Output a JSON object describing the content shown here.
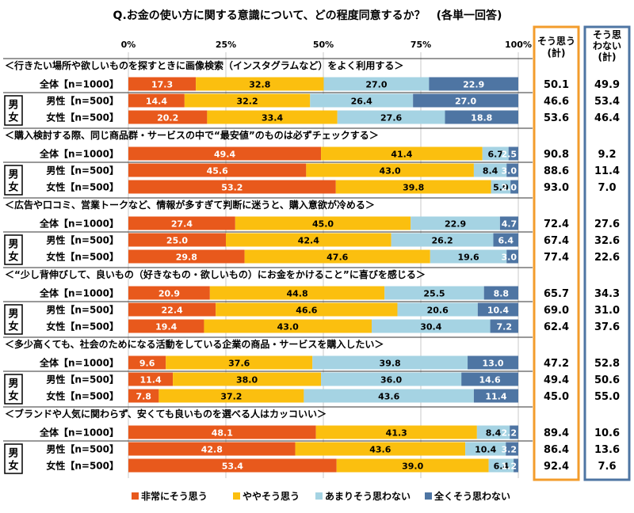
{
  "chart_data": {
    "type": "bar",
    "stacked": true,
    "orientation": "horizontal",
    "title": "Q.お金の使い方に関する意識について、どの程度同意するか？　(各単一回答)",
    "x_ticks": [
      "0%",
      "25%",
      "50%",
      "75%",
      "100%"
    ],
    "xlim": [
      0,
      100
    ],
    "grid": true,
    "legend_position": "bottom",
    "gender_label": "男\n女",
    "summary_headers": {
      "agree": "そう思う\n(計)",
      "disagree": "そう思\nわない\n(計)"
    },
    "legend": [
      {
        "name": "非常にそう思う",
        "color": "#e8591c"
      },
      {
        "name": "ややそう思う",
        "color": "#fbbf0f"
      },
      {
        "name": "あまりそう思わない",
        "color": "#a5d3e3"
      },
      {
        "name": "全くそう思わない",
        "color": "#4e75a3"
      }
    ],
    "groups": [
      {
        "question": "＜行きたい場所や欲しいものを探すときに画像検索（インスタグラムなど）をよく利用する＞",
        "rows": [
          {
            "label": "全体【n=1000】",
            "values": [
              17.3,
              32.8,
              27.0,
              22.9
            ],
            "agree": "50.1",
            "disagree": "49.9"
          },
          {
            "label": "男性【n=500】",
            "values": [
              14.4,
              32.2,
              26.4,
              27.0
            ],
            "agree": "46.6",
            "disagree": "53.4"
          },
          {
            "label": "女性【n=500】",
            "values": [
              20.2,
              33.4,
              27.6,
              18.8
            ],
            "agree": "53.6",
            "disagree": "46.4"
          }
        ]
      },
      {
        "question": "＜購入検討する際、同じ商品群・サービスの中で“最安値”のものは必ずチェックする＞",
        "rows": [
          {
            "label": "全体【n=1000】",
            "values": [
              49.4,
              41.4,
              6.7,
              2.5
            ],
            "agree": "90.8",
            "disagree": "9.2"
          },
          {
            "label": "男性【n=500】",
            "values": [
              45.6,
              43.0,
              8.4,
              3.0
            ],
            "agree": "88.6",
            "disagree": "11.4"
          },
          {
            "label": "女性【n=500】",
            "values": [
              53.2,
              39.8,
              5.0,
              2.0
            ],
            "agree": "93.0",
            "disagree": "7.0"
          }
        ]
      },
      {
        "question": "＜広告や口コミ、営業トークなど、情報が多すぎて判断に迷うと、購入意欲が冷める＞",
        "rows": [
          {
            "label": "全体【n=1000】",
            "values": [
              27.4,
              45.0,
              22.9,
              4.7
            ],
            "agree": "72.4",
            "disagree": "27.6"
          },
          {
            "label": "男性【n=500】",
            "values": [
              25.0,
              42.4,
              26.2,
              6.4
            ],
            "agree": "67.4",
            "disagree": "32.6"
          },
          {
            "label": "女性【n=500】",
            "values": [
              29.8,
              47.6,
              19.6,
              3.0
            ],
            "agree": "77.4",
            "disagree": "22.6"
          }
        ]
      },
      {
        "question": "＜“少し背伸びして、良いもの（好きなもの・欲しいもの）にお金をかけること”に喜びを感じる＞",
        "rows": [
          {
            "label": "全体【n=1000】",
            "values": [
              20.9,
              44.8,
              25.5,
              8.8
            ],
            "agree": "65.7",
            "disagree": "34.3"
          },
          {
            "label": "男性【n=500】",
            "values": [
              22.4,
              46.6,
              20.6,
              10.4
            ],
            "agree": "69.0",
            "disagree": "31.0"
          },
          {
            "label": "女性【n=500】",
            "values": [
              19.4,
              43.0,
              30.4,
              7.2
            ],
            "agree": "62.4",
            "disagree": "37.6"
          }
        ]
      },
      {
        "question": "＜多少高くても、社会のためになる活動をしている企業の商品・サービスを購入したい＞",
        "rows": [
          {
            "label": "全体【n=1000】",
            "values": [
              9.6,
              37.6,
              39.8,
              13.0
            ],
            "agree": "47.2",
            "disagree": "52.8"
          },
          {
            "label": "男性【n=500】",
            "values": [
              11.4,
              38.0,
              36.0,
              14.6
            ],
            "agree": "49.4",
            "disagree": "50.6"
          },
          {
            "label": "女性【n=500】",
            "values": [
              7.8,
              37.2,
              43.6,
              11.4
            ],
            "agree": "45.0",
            "disagree": "55.0"
          }
        ]
      },
      {
        "question": "＜ブランドや人気に関わらず、安くても良いものを選べる人はカッコいい＞",
        "rows": [
          {
            "label": "全体【n=1000】",
            "values": [
              48.1,
              41.3,
              8.4,
              2.2
            ],
            "agree": "89.4",
            "disagree": "10.6"
          },
          {
            "label": "男性【n=500】",
            "values": [
              42.8,
              43.6,
              10.4,
              3.2
            ],
            "agree": "86.4",
            "disagree": "13.6"
          },
          {
            "label": "女性【n=500】",
            "values": [
              53.4,
              39.0,
              6.4,
              1.2
            ],
            "agree": "92.4",
            "disagree": "7.6"
          }
        ]
      }
    ]
  }
}
